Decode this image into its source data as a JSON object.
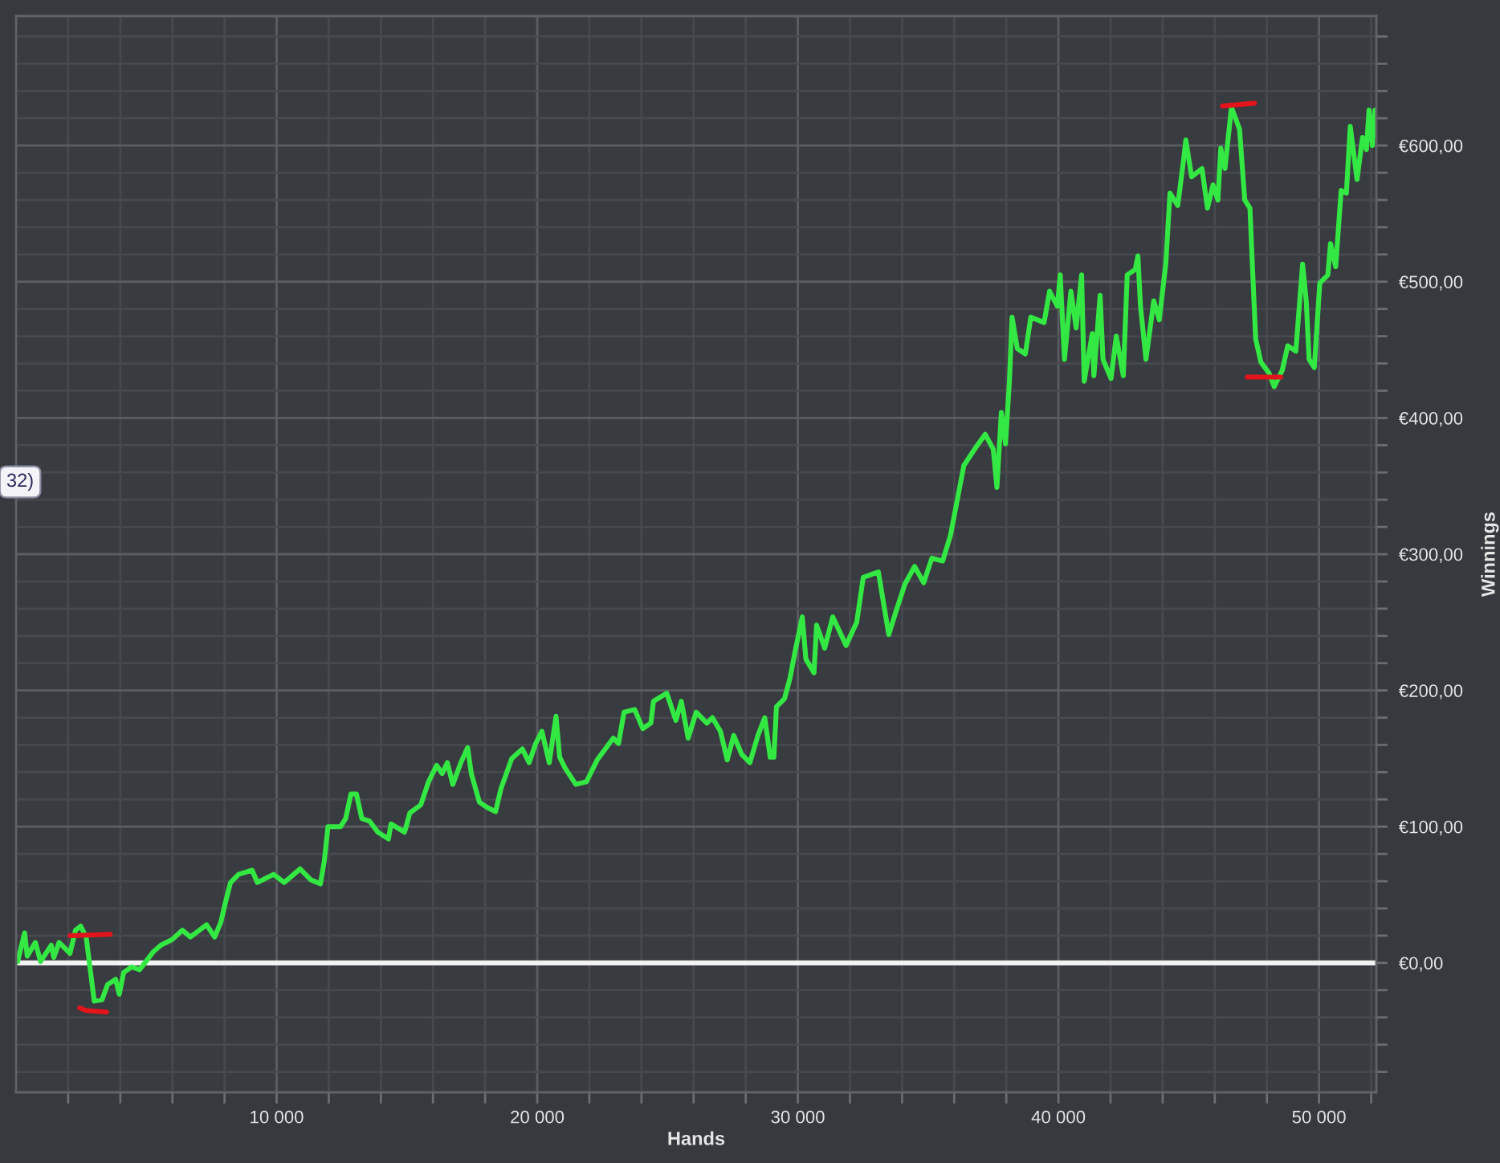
{
  "chart_data": {
    "type": "line",
    "xlabel": "Hands",
    "ylabel": "Winnings",
    "grid": true,
    "line_style": "solid",
    "annotations": [
      "32)"
    ],
    "xlim": [
      0,
      52200
    ],
    "ylim": [
      -95,
      695
    ],
    "xticks": [
      {
        "value": 2000,
        "label": null
      },
      {
        "value": 4000,
        "label": null
      },
      {
        "value": 6000,
        "label": null
      },
      {
        "value": 8000,
        "label": null
      },
      {
        "value": 10000,
        "label": "10 000"
      },
      {
        "value": 12000,
        "label": null
      },
      {
        "value": 14000,
        "label": null
      },
      {
        "value": 16000,
        "label": null
      },
      {
        "value": 18000,
        "label": null
      },
      {
        "value": 20000,
        "label": "20 000"
      },
      {
        "value": 22000,
        "label": null
      },
      {
        "value": 24000,
        "label": null
      },
      {
        "value": 26000,
        "label": null
      },
      {
        "value": 28000,
        "label": null
      },
      {
        "value": 30000,
        "label": "30 000"
      },
      {
        "value": 32000,
        "label": null
      },
      {
        "value": 34000,
        "label": null
      },
      {
        "value": 36000,
        "label": null
      },
      {
        "value": 38000,
        "label": null
      },
      {
        "value": 40000,
        "label": "40 000"
      },
      {
        "value": 42000,
        "label": null
      },
      {
        "value": 44000,
        "label": null
      },
      {
        "value": 46000,
        "label": null
      },
      {
        "value": 48000,
        "label": null
      },
      {
        "value": 50000,
        "label": "50 000"
      },
      {
        "value": 52000,
        "label": null
      }
    ],
    "yticks": [
      {
        "value": -80,
        "label": null
      },
      {
        "value": -60,
        "label": null
      },
      {
        "value": -40,
        "label": null
      },
      {
        "value": -20,
        "label": null
      },
      {
        "value": 0,
        "label": "€0,00"
      },
      {
        "value": 20,
        "label": null
      },
      {
        "value": 40,
        "label": null
      },
      {
        "value": 60,
        "label": null
      },
      {
        "value": 80,
        "label": null
      },
      {
        "value": 100,
        "label": "€100,00"
      },
      {
        "value": 120,
        "label": null
      },
      {
        "value": 140,
        "label": null
      },
      {
        "value": 160,
        "label": null
      },
      {
        "value": 180,
        "label": null
      },
      {
        "value": 200,
        "label": "€200,00"
      },
      {
        "value": 220,
        "label": null
      },
      {
        "value": 240,
        "label": null
      },
      {
        "value": 260,
        "label": null
      },
      {
        "value": 280,
        "label": null
      },
      {
        "value": 300,
        "label": "€300,00"
      },
      {
        "value": 320,
        "label": null
      },
      {
        "value": 340,
        "label": null
      },
      {
        "value": 360,
        "label": null
      },
      {
        "value": 380,
        "label": null
      },
      {
        "value": 400,
        "label": "€400,00"
      },
      {
        "value": 420,
        "label": null
      },
      {
        "value": 440,
        "label": null
      },
      {
        "value": 460,
        "label": null
      },
      {
        "value": 480,
        "label": null
      },
      {
        "value": 500,
        "label": "€500,00"
      },
      {
        "value": 520,
        "label": null
      },
      {
        "value": 540,
        "label": null
      },
      {
        "value": 560,
        "label": null
      },
      {
        "value": 580,
        "label": null
      },
      {
        "value": 600,
        "label": "€600,00"
      },
      {
        "value": 620,
        "label": null
      },
      {
        "value": 640,
        "label": null
      },
      {
        "value": 660,
        "label": null
      },
      {
        "value": 680,
        "label": null
      }
    ],
    "ref_lines": [
      {
        "axis": "y",
        "value": 0,
        "color": "#f2f2f2",
        "line_style": "solid"
      }
    ],
    "series": [
      {
        "color": "#33e843",
        "x": [
          60,
          330,
          430,
          740,
          940,
          1350,
          1450,
          1650,
          2070,
          2280,
          2480,
          2690,
          3000,
          3300,
          3510,
          3820,
          3960,
          4130,
          4430,
          4740,
          5260,
          5560,
          5980,
          6380,
          6690,
          7310,
          7620,
          7860,
          8030,
          8230,
          8540,
          9060,
          9260,
          9880,
          10290,
          10900,
          11310,
          11680,
          11830,
          11970,
          12450,
          12650,
          12850,
          13060,
          13270,
          13570,
          13880,
          14290,
          14390,
          14910,
          15110,
          15530,
          15830,
          16140,
          16350,
          16550,
          16760,
          17070,
          17330,
          17470,
          17780,
          18090,
          18400,
          18610,
          19020,
          19430,
          19690,
          19940,
          20180,
          20460,
          20720,
          20860,
          21070,
          21480,
          21890,
          22300,
          22920,
          23120,
          23330,
          23740,
          24050,
          24360,
          24460,
          24970,
          25320,
          25530,
          25790,
          26100,
          26510,
          26720,
          27030,
          27290,
          27540,
          27850,
          28160,
          28470,
          28730,
          28940,
          29080,
          29180,
          29490,
          29700,
          29900,
          30170,
          30310,
          30620,
          30720,
          31030,
          31340,
          31850,
          32260,
          32510,
          33090,
          33490,
          33800,
          34110,
          34480,
          34830,
          35140,
          35560,
          35860,
          36370,
          36780,
          37190,
          37500,
          37640,
          37810,
          37970,
          38120,
          38220,
          38420,
          38730,
          38940,
          39450,
          39660,
          39960,
          40070,
          40230,
          40480,
          40680,
          40890,
          40990,
          41300,
          41360,
          41600,
          41710,
          42020,
          42220,
          42490,
          42640,
          42950,
          43050,
          43150,
          43360,
          43660,
          43870,
          44120,
          44280,
          44580,
          44800,
          44890,
          45110,
          45510,
          45720,
          45930,
          46120,
          46230,
          46390,
          46640,
          46950,
          47150,
          47350,
          47460,
          47570,
          47770,
          48080,
          48280,
          48590,
          48800,
          49110,
          49370,
          49510,
          49620,
          49820,
          50030,
          50340,
          50440,
          50640,
          50850,
          51050,
          51200,
          51460,
          51670,
          51820,
          51920,
          52050,
          52150
        ],
        "values": [
          1,
          22,
          5,
          15,
          1,
          13,
          4,
          15,
          7,
          24,
          27,
          19,
          -28,
          -27,
          -16,
          -12,
          -23,
          -7,
          -3,
          -5,
          8,
          13,
          17,
          24,
          19,
          28,
          19,
          30,
          44,
          59,
          65,
          68,
          59,
          65,
          59,
          69,
          61,
          58,
          75,
          100,
          100,
          106,
          124,
          124,
          106,
          104,
          96,
          91,
          102,
          96,
          110,
          116,
          133,
          145,
          139,
          147,
          131,
          147,
          158,
          139,
          118,
          114,
          111,
          128,
          150,
          157,
          147,
          161,
          170,
          147,
          181,
          151,
          143,
          131,
          133,
          149,
          165,
          161,
          184,
          186,
          172,
          176,
          192,
          198,
          178,
          192,
          165,
          184,
          176,
          180,
          170,
          149,
          167,
          153,
          147,
          167,
          180,
          151,
          151,
          188,
          194,
          209,
          229,
          254,
          223,
          213,
          248,
          231,
          254,
          233,
          250,
          283,
          287,
          241,
          260,
          278,
          291,
          279,
          297,
          295,
          314,
          365,
          377,
          388,
          377,
          349,
          404,
          381,
          427,
          474,
          451,
          447,
          474,
          470,
          493,
          482,
          505,
          443,
          493,
          466,
          505,
          427,
          462,
          431,
          490,
          443,
          429,
          460,
          431,
          505,
          509,
          519,
          482,
          443,
          486,
          472,
          513,
          565,
          556,
          589,
          604,
          577,
          583,
          554,
          571,
          560,
          598,
          583,
          628,
          612,
          560,
          554,
          505,
          458,
          441,
          433,
          423,
          435,
          453,
          449,
          513,
          486,
          443,
          437,
          499,
          505,
          528,
          511,
          567,
          565,
          614,
          575,
          606,
          597,
          626,
          600,
          626
        ]
      },
      {
        "type": "line",
        "color": "#e3141c",
        "x": [
          2070,
          3610
        ],
        "values": [
          20,
          21
        ]
      },
      {
        "type": "line",
        "color": "#e3141c",
        "x": [
          2440,
          2700,
          3470
        ],
        "values": [
          -33,
          -35,
          -36
        ]
      },
      {
        "type": "line",
        "color": "#e3141c",
        "x": [
          46300,
          47520
        ],
        "values": [
          629,
          631
        ]
      },
      {
        "type": "line",
        "color": "#e3141c",
        "x": [
          47250,
          48530
        ],
        "values": [
          430,
          430
        ]
      }
    ]
  }
}
